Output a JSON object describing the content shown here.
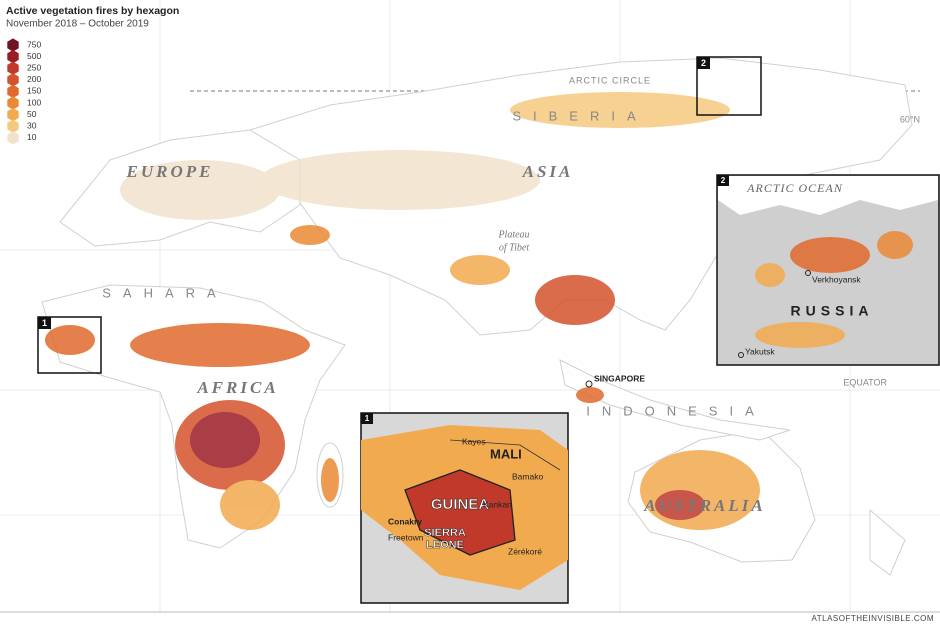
{
  "header": {
    "title": "Active vegetation fires by hexagon",
    "subtitle": "November 2018 – October 2019"
  },
  "legend": [
    {
      "label": 750,
      "color": "#6e1423"
    },
    {
      "label": 500,
      "color": "#9c1c25"
    },
    {
      "label": 250,
      "color": "#c0392b"
    },
    {
      "label": 200,
      "color": "#d4532c"
    },
    {
      "label": 150,
      "color": "#e06a2e"
    },
    {
      "label": 100,
      "color": "#ea8a36"
    },
    {
      "label": 50,
      "color": "#f2aa4f"
    },
    {
      "label": 30,
      "color": "#f6c97e"
    },
    {
      "label": 10,
      "color": "#f2e2cc"
    }
  ],
  "map": {
    "arctic_circle": "ARCTIC CIRCLE",
    "lat_60": "60°N",
    "europe": "EUROPE",
    "asia": "ASIA",
    "siberia": "SIBERIA",
    "plateau_1": "Plateau",
    "plateau_2": "of Tibet",
    "sahara": "SAHARA",
    "africa": "AFRICA",
    "singapore": "SINGAPORE",
    "indonesia": "INDONESIA",
    "equator": "EQUATOR",
    "australia": "AUSTRALIA",
    "box_1": "1",
    "box_2": "2"
  },
  "inset_1": {
    "number": "1",
    "mali": "MALI",
    "guinea": "GUINEA",
    "sierra": "SIERRA",
    "leone": "LEONE",
    "kayes": "Kayes",
    "bamako": "Bamako",
    "kankan": "Kankan",
    "conakry": "Conakry",
    "freetown": "Freetown",
    "zerekore": "Zérékoré"
  },
  "inset_2": {
    "number": "2",
    "ocean": "ARCTIC OCEAN",
    "verkhoyansk": "Verkhoyansk",
    "russia": "RUSSIA",
    "yakutsk": "Yakutsk"
  },
  "credit": "ATLASOFTHEINVISIBLE.COM"
}
